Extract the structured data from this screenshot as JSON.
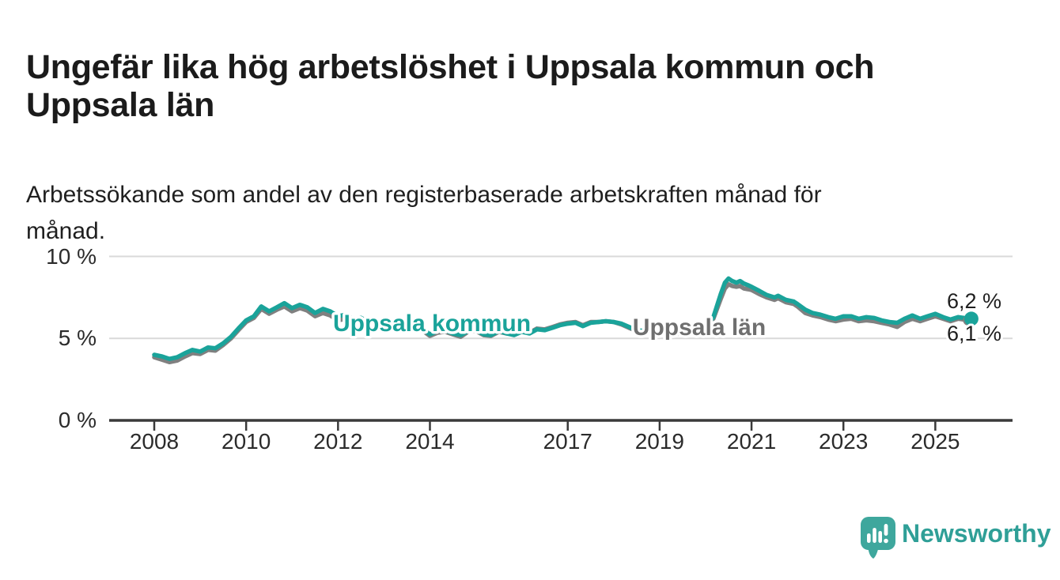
{
  "title": "Ungefär lika hög arbetslöshet i Uppsala kommun och\nUppsala län",
  "subtitle": "Arbetssökande som andel av den registerbaserade arbetskraften månad för\nmånad.",
  "branding": {
    "logo_text": "Newsworthy",
    "logo_icon": "bar-chart-speech-bubble-icon",
    "logo_color": "#3ea79d"
  },
  "colors": {
    "kommun_line": "#1aa39a",
    "lan_line": "#808080",
    "lan_label": "#6f6f6f",
    "axis": "#3a3a3a",
    "grid": "#d9d9d9",
    "text": "#1b1b1b"
  },
  "chart_data": {
    "type": "line",
    "title": "Ungefär lika hög arbetslöshet i Uppsala kommun och Uppsala län",
    "subtitle": "Arbetssökande som andel av den registerbaserade arbetskraften månad för månad.",
    "xlabel": "",
    "ylabel": "%",
    "xlim": [
      2007.0,
      2026.0
    ],
    "ylim": [
      0,
      10.5
    ],
    "grid": "horizontal",
    "legend_position": "inline-labels",
    "y_ticks": [
      {
        "value": 0,
        "label": "0 %"
      },
      {
        "value": 5,
        "label": "5 %"
      },
      {
        "value": 10,
        "label": "10 %"
      }
    ],
    "x_ticks": [
      {
        "value": 2008,
        "label": "2008"
      },
      {
        "value": 2010,
        "label": "2010"
      },
      {
        "value": 2012,
        "label": "2012"
      },
      {
        "value": 2014,
        "label": "2014"
      },
      {
        "value": 2017,
        "label": "2017"
      },
      {
        "value": 2019,
        "label": "2019"
      },
      {
        "value": 2021,
        "label": "2021"
      },
      {
        "value": 2023,
        "label": "2023"
      },
      {
        "value": 2025,
        "label": "2025"
      }
    ],
    "x": [
      2008.0,
      2008.17,
      2008.33,
      2008.5,
      2008.67,
      2008.83,
      2009.0,
      2009.17,
      2009.33,
      2009.5,
      2009.67,
      2009.83,
      2010.0,
      2010.17,
      2010.33,
      2010.5,
      2010.67,
      2010.83,
      2011.0,
      2011.17,
      2011.33,
      2011.5,
      2011.67,
      2011.83,
      2012.0,
      2012.17,
      2012.33,
      2012.5,
      2012.67,
      2012.83,
      2013.0,
      2013.17,
      2013.33,
      2013.5,
      2013.67,
      2013.83,
      2014.0,
      2014.17,
      2014.33,
      2014.5,
      2014.67,
      2014.83,
      2015.0,
      2015.17,
      2015.33,
      2015.5,
      2015.67,
      2015.83,
      2016.0,
      2016.17,
      2016.33,
      2016.5,
      2016.67,
      2016.83,
      2017.0,
      2017.17,
      2017.33,
      2017.5,
      2017.67,
      2017.83,
      2018.0,
      2018.17,
      2018.33,
      2018.5,
      2018.67,
      2018.83,
      2019.0,
      2019.17,
      2019.33,
      2019.5,
      2019.67,
      2019.83,
      2020.0,
      2020.17,
      2020.33,
      2020.42,
      2020.5,
      2020.58,
      2020.67,
      2020.75,
      2020.83,
      2020.92,
      2021.0,
      2021.17,
      2021.33,
      2021.5,
      2021.58,
      2021.75,
      2021.92,
      2022.0,
      2022.17,
      2022.33,
      2022.5,
      2022.67,
      2022.83,
      2023.0,
      2023.17,
      2023.33,
      2023.5,
      2023.67,
      2023.83,
      2024.0,
      2024.17,
      2024.33,
      2024.5,
      2024.67,
      2024.83,
      2025.0,
      2025.17,
      2025.33,
      2025.5,
      2025.75
    ],
    "series": [
      {
        "name": "Uppsala kommun",
        "color": "#1aa39a",
        "end_label": "6,2 %",
        "end_value": 6.2,
        "values": [
          4.0,
          3.9,
          3.75,
          3.85,
          4.1,
          4.3,
          4.2,
          4.45,
          4.4,
          4.7,
          5.1,
          5.6,
          6.1,
          6.35,
          6.95,
          6.65,
          6.9,
          7.15,
          6.85,
          7.05,
          6.9,
          6.55,
          6.8,
          6.65,
          6.35,
          6.45,
          6.15,
          6.25,
          6.0,
          6.1,
          5.95,
          5.85,
          5.95,
          5.7,
          5.8,
          5.6,
          5.25,
          5.45,
          5.5,
          5.3,
          5.2,
          5.45,
          5.5,
          5.25,
          5.2,
          5.45,
          5.3,
          5.2,
          5.4,
          5.3,
          5.55,
          5.5,
          5.65,
          5.8,
          5.9,
          5.95,
          5.75,
          5.95,
          6.0,
          6.05,
          6.0,
          5.9,
          5.7,
          5.5,
          5.45,
          5.4,
          5.45,
          5.35,
          5.25,
          5.45,
          5.55,
          5.5,
          5.75,
          6.3,
          7.7,
          8.4,
          8.65,
          8.5,
          8.4,
          8.5,
          8.35,
          8.25,
          8.15,
          7.9,
          7.65,
          7.5,
          7.6,
          7.35,
          7.25,
          7.1,
          6.75,
          6.55,
          6.45,
          6.3,
          6.2,
          6.35,
          6.35,
          6.2,
          6.3,
          6.25,
          6.1,
          6.0,
          5.95,
          6.2,
          6.4,
          6.2,
          6.35,
          6.5,
          6.3,
          6.15,
          6.3,
          6.2
        ]
      },
      {
        "name": "Uppsala län",
        "color": "#808080",
        "end_label": "6,1 %",
        "end_value": 6.1,
        "values": [
          3.85,
          3.7,
          3.55,
          3.65,
          3.9,
          4.1,
          4.05,
          4.3,
          4.25,
          4.6,
          5.0,
          5.5,
          6.0,
          6.25,
          6.8,
          6.5,
          6.75,
          6.95,
          6.65,
          6.85,
          6.7,
          6.35,
          6.55,
          6.4,
          6.1,
          6.2,
          5.9,
          6.0,
          5.8,
          5.9,
          5.8,
          5.7,
          5.8,
          5.6,
          5.7,
          5.5,
          5.15,
          5.35,
          5.4,
          5.25,
          5.1,
          5.4,
          5.45,
          5.2,
          5.15,
          5.4,
          5.3,
          5.25,
          5.45,
          5.35,
          5.6,
          5.55,
          5.7,
          5.85,
          5.95,
          6.0,
          5.8,
          6.0,
          6.0,
          6.05,
          6.0,
          5.85,
          5.65,
          5.45,
          5.4,
          5.35,
          5.4,
          5.3,
          5.2,
          5.4,
          5.5,
          5.45,
          5.65,
          6.2,
          7.4,
          8.05,
          8.3,
          8.2,
          8.15,
          8.2,
          8.05,
          8.0,
          7.95,
          7.7,
          7.5,
          7.35,
          7.45,
          7.2,
          7.1,
          6.95,
          6.55,
          6.4,
          6.3,
          6.15,
          6.05,
          6.15,
          6.2,
          6.05,
          6.1,
          6.05,
          5.95,
          5.85,
          5.7,
          6.0,
          6.2,
          6.05,
          6.2,
          6.35,
          6.2,
          6.05,
          6.2,
          6.1
        ]
      }
    ]
  }
}
